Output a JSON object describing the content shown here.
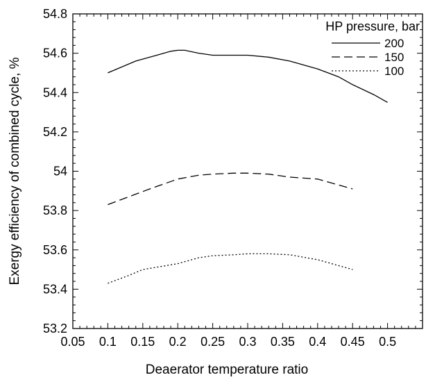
{
  "chart_data": {
    "type": "line",
    "title": "",
    "xlabel": "Deaerator temperature ratio",
    "ylabel": "Exergy efficiency of combined cycle, %",
    "xlim": [
      0.05,
      0.55
    ],
    "ylim": [
      53.2,
      54.8
    ],
    "x_ticks": [
      0.05,
      0.1,
      0.15,
      0.2,
      0.25,
      0.3,
      0.35,
      0.4,
      0.45,
      0.5
    ],
    "x_tick_labels": [
      "0.05",
      "0.1",
      "0.15",
      "0.2",
      "0.25",
      "0.3",
      "0.35",
      "0.4",
      "0.45",
      "0.5"
    ],
    "y_ticks": [
      53.2,
      53.4,
      53.6,
      53.8,
      54,
      54.2,
      54.4,
      54.6,
      54.8
    ],
    "y_tick_labels": [
      "53.2",
      "53.4",
      "53.6",
      "53.8",
      "54",
      "54.2",
      "54.4",
      "54.6",
      "54.8"
    ],
    "grid": false,
    "legend": {
      "title": "HP pressure, bar",
      "placement": "top-right"
    },
    "series": [
      {
        "name": "200",
        "style": "solid",
        "x": [
          0.1,
          0.14,
          0.17,
          0.19,
          0.2,
          0.21,
          0.23,
          0.25,
          0.28,
          0.3,
          0.33,
          0.36,
          0.4,
          0.43,
          0.45,
          0.48,
          0.5
        ],
        "y": [
          54.5,
          54.56,
          54.59,
          54.61,
          54.615,
          54.615,
          54.6,
          54.59,
          54.59,
          54.59,
          54.58,
          54.56,
          54.52,
          54.48,
          54.44,
          54.39,
          54.35
        ]
      },
      {
        "name": "150",
        "style": "dashed",
        "x": [
          0.1,
          0.13,
          0.16,
          0.2,
          0.23,
          0.25,
          0.28,
          0.3,
          0.33,
          0.36,
          0.4,
          0.43,
          0.45
        ],
        "y": [
          53.83,
          53.87,
          53.91,
          53.96,
          53.98,
          53.985,
          53.99,
          53.99,
          53.985,
          53.97,
          53.96,
          53.93,
          53.91
        ]
      },
      {
        "name": "100",
        "style": "dotted",
        "x": [
          0.1,
          0.13,
          0.15,
          0.2,
          0.23,
          0.25,
          0.28,
          0.3,
          0.33,
          0.36,
          0.4,
          0.43,
          0.45
        ],
        "y": [
          53.43,
          53.47,
          53.5,
          53.53,
          53.56,
          53.57,
          53.575,
          53.58,
          53.58,
          53.575,
          53.55,
          53.52,
          53.5
        ]
      }
    ]
  }
}
